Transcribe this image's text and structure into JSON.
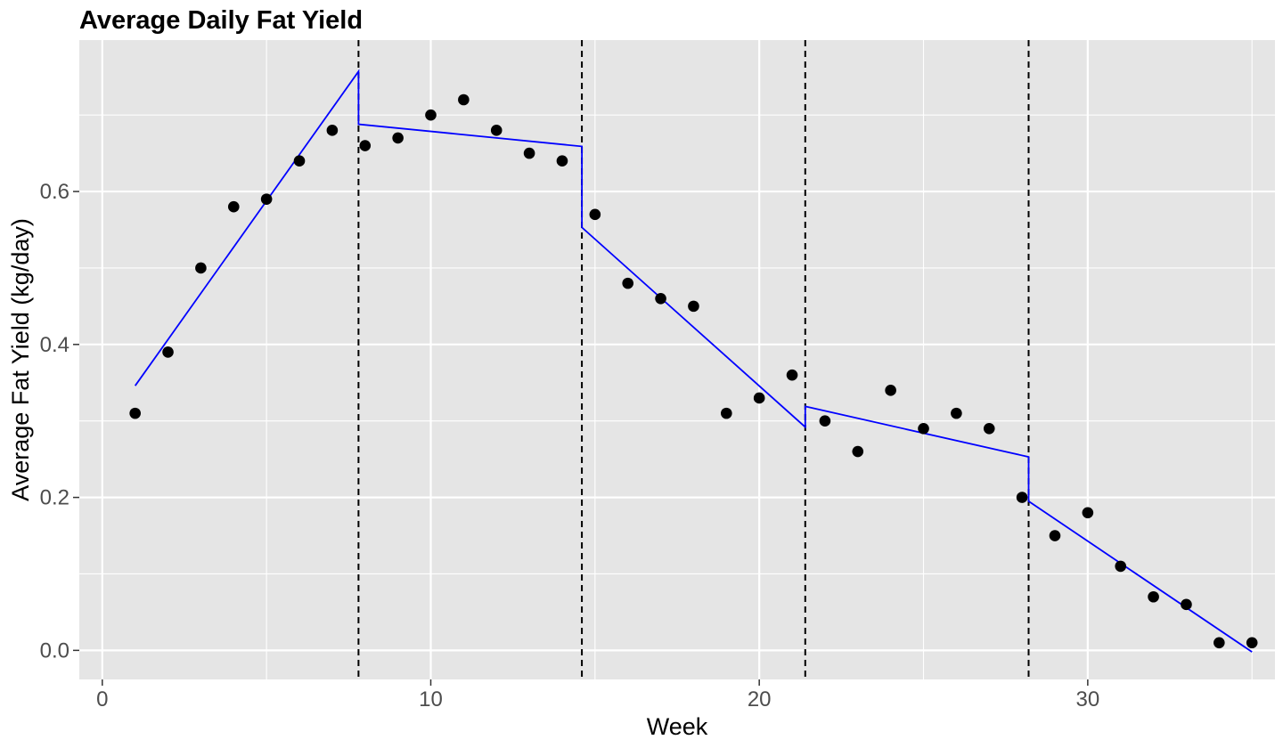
{
  "chart_data": {
    "type": "scatter",
    "title": "Average Daily Fat Yield",
    "xlabel": "Week",
    "ylabel": "Average Fat Yield (kg/day)",
    "xlim": [
      -0.7,
      35.7
    ],
    "ylim": [
      -0.038,
      0.798
    ],
    "x_ticks": [
      0,
      10,
      20,
      30
    ],
    "x_tick_labels": [
      "0",
      "10",
      "20",
      "30"
    ],
    "y_ticks": [
      0.0,
      0.2,
      0.4,
      0.6
    ],
    "y_tick_labels": [
      "0.0",
      "0.2",
      "0.4",
      "0.6"
    ],
    "grid": true,
    "panel_background": "#e5e5e5",
    "grid_color": "#ffffff",
    "point_color": "#000000",
    "line_color": "#0000ff",
    "vline_color": "#000000",
    "points": {
      "x": [
        1,
        2,
        3,
        4,
        5,
        6,
        7,
        8,
        9,
        10,
        11,
        12,
        13,
        14,
        15,
        16,
        17,
        18,
        19,
        20,
        21,
        22,
        23,
        24,
        25,
        26,
        27,
        28,
        29,
        30,
        31,
        32,
        33,
        34,
        35
      ],
      "y": [
        0.31,
        0.39,
        0.5,
        0.58,
        0.59,
        0.64,
        0.68,
        0.66,
        0.67,
        0.7,
        0.72,
        0.68,
        0.65,
        0.64,
        0.57,
        0.48,
        0.46,
        0.45,
        0.31,
        0.33,
        0.36,
        0.3,
        0.26,
        0.34,
        0.29,
        0.31,
        0.29,
        0.2,
        0.15,
        0.18,
        0.11,
        0.07,
        0.06,
        0.01,
        0.01
      ]
    },
    "fitted_line": {
      "x": [
        1,
        7.8,
        7.8,
        14.6,
        14.6,
        21.4,
        21.4,
        28.2,
        28.2,
        35
      ],
      "y": [
        0.346,
        0.757,
        0.688,
        0.659,
        0.553,
        0.292,
        0.319,
        0.253,
        0.195,
        -0.002
      ]
    },
    "vertical_lines": [
      7.8,
      14.6,
      21.4,
      28.2
    ]
  }
}
